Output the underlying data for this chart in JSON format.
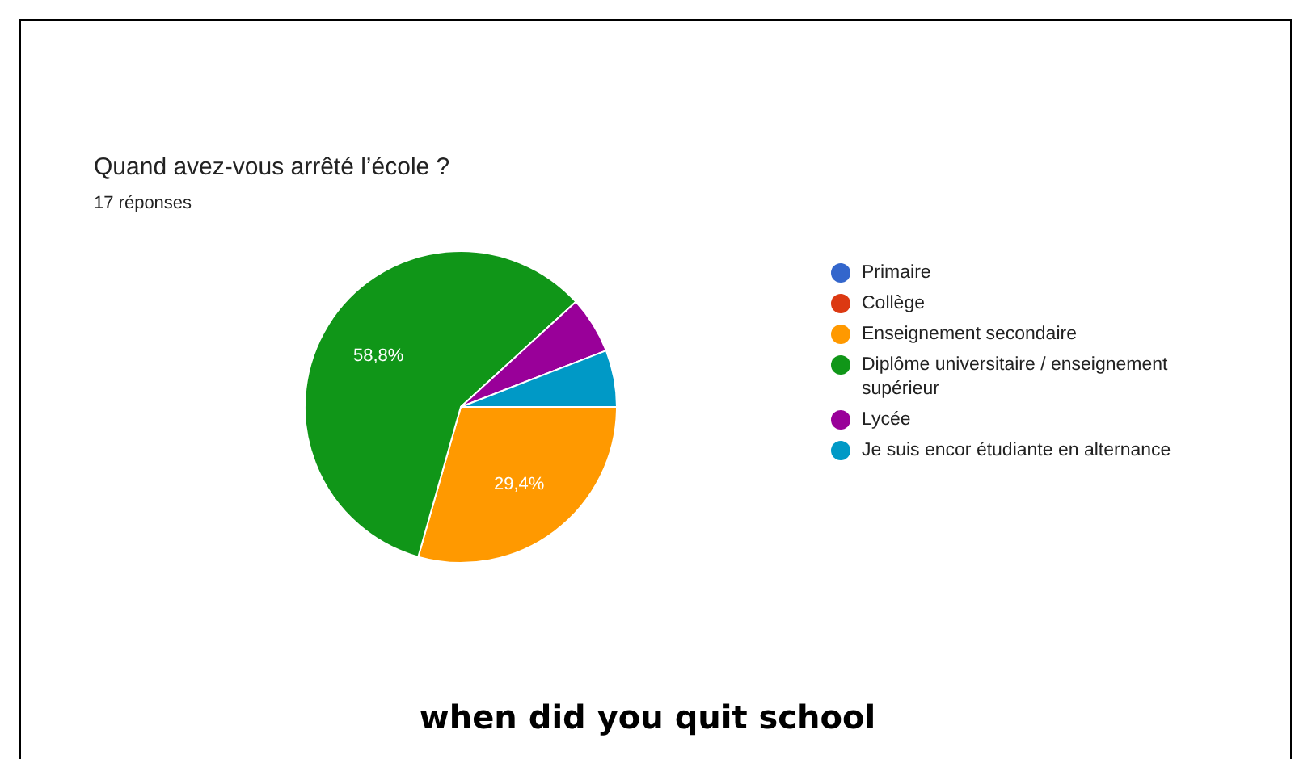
{
  "chart_data": {
    "type": "pie",
    "title": "Quand avez-vous arrêté l’école ?",
    "subtitle": "17 réponses",
    "categories": [
      "Primaire",
      "Collège",
      "Enseignement secondaire",
      "Diplôme universitaire / enseignement supérieur",
      "Lycée",
      "Je suis encor étudiante en alternance"
    ],
    "values": [
      0,
      0,
      29.4,
      58.8,
      5.9,
      5.9
    ],
    "colors": [
      "#3366cc",
      "#dc3912",
      "#ff9900",
      "#109618",
      "#990099",
      "#0099c6"
    ],
    "value_labels": [
      null,
      null,
      "29,4%",
      "58,8%",
      null,
      null
    ],
    "legend": "right",
    "annotations": [
      "when did you quit school"
    ]
  }
}
